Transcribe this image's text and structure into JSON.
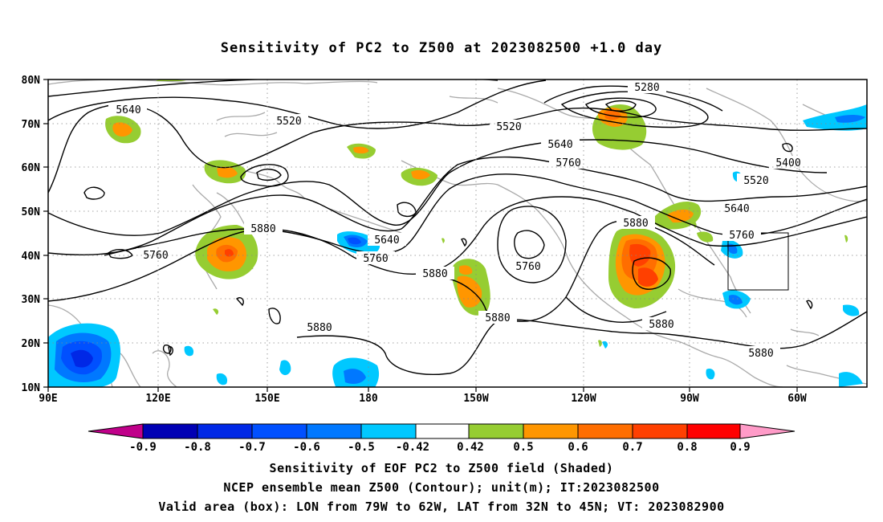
{
  "title": "Sensitivity of PC2 to Z500 at 2023082500 +1.0 day",
  "lat_labels": [
    "10N",
    "20N",
    "30N",
    "40N",
    "50N",
    "60N",
    "70N",
    "80N"
  ],
  "lon_labels": [
    "90E",
    "120E",
    "150E",
    "180",
    "150W",
    "120W",
    "90W",
    "60W"
  ],
  "contour_labels": [
    "5640",
    "5520",
    "5280",
    "5520",
    "5640",
    "5760",
    "5400",
    "5520",
    "5640",
    "5760",
    "5880",
    "5880",
    "5640",
    "5760",
    "5760",
    "5880",
    "5760",
    "5880",
    "5880",
    "5880",
    "5880"
  ],
  "colorbar": {
    "colors": [
      "#c0008a",
      "#0000b4",
      "#0028e6",
      "#0050ff",
      "#0078ff",
      "#00c8ff",
      "#ffffff",
      "#96cd32",
      "#ff9600",
      "#ff6e00",
      "#ff4000",
      "#ff0000",
      "#ff9bc8"
    ],
    "labels": [
      "-0.9",
      "-0.8",
      "-0.7",
      "-0.6",
      "-0.5",
      "-0.42",
      "0.42",
      "0.5",
      "0.6",
      "0.7",
      "0.8",
      "0.9"
    ]
  },
  "captions": {
    "line1": "Sensitivity of EOF PC2 to Z500 field (Shaded)",
    "line2": "NCEP ensemble mean Z500 (Contour); unit(m); IT:2023082500",
    "line3": "Valid area (box): LON from 79W to 62W, LAT from 32N to 45N; VT: 2023082900"
  }
}
